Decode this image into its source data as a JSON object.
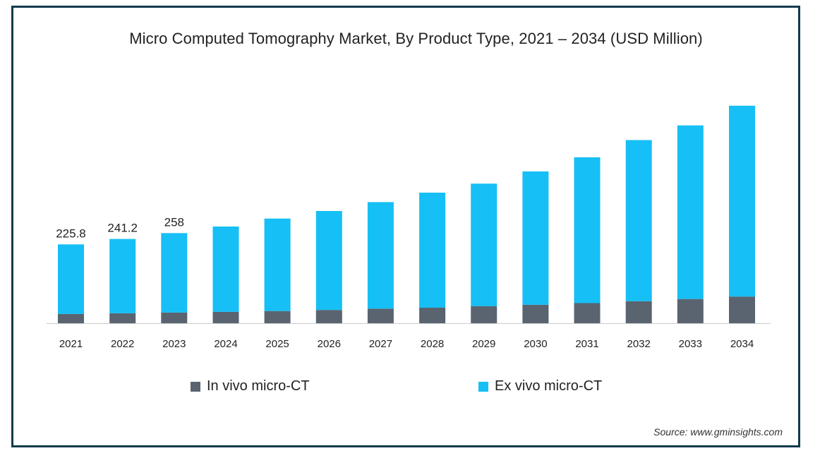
{
  "chart_data": {
    "type": "bar",
    "stacked": true,
    "title": "Micro Computed Tomography Market, By Product Type, 2021 – 2034 (USD Million)",
    "categories": [
      "2021",
      "2022",
      "2023",
      "2024",
      "2025",
      "2026",
      "2027",
      "2028",
      "2029",
      "2030",
      "2031",
      "2032",
      "2033",
      "2034"
    ],
    "series": [
      {
        "name": "In vivo micro-CT",
        "color": "#5a6470",
        "values": [
          26.5,
          28.4,
          30.5,
          32.6,
          35.0,
          38.0,
          41.5,
          44.4,
          49.0,
          52.8,
          57.6,
          63.0,
          69.4,
          76.3
        ]
      },
      {
        "name": "Ex vivo micro-CT",
        "color": "#16bff5",
        "values": [
          199.3,
          212.8,
          227.5,
          244.3,
          264.6,
          283.2,
          305.2,
          329.4,
          350.7,
          381.8,
          417.5,
          461.3,
          497.0,
          546.5
        ]
      }
    ],
    "data_labels": [
      {
        "category": "2021",
        "text": "225.8"
      },
      {
        "category": "2022",
        "text": "241.2"
      },
      {
        "category": "2023",
        "text": "258"
      }
    ],
    "grid": false,
    "legend_position": "bottom",
    "source": "Source: www.gminsights.com"
  }
}
